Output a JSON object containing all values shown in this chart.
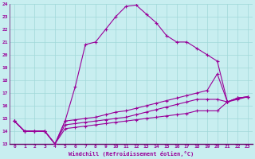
{
  "xlabel": "Windchill (Refroidissement éolien,°C)",
  "xlim": [
    -0.5,
    23.5
  ],
  "ylim": [
    13,
    24
  ],
  "xticks": [
    0,
    1,
    2,
    3,
    4,
    5,
    6,
    7,
    8,
    9,
    10,
    11,
    12,
    13,
    14,
    15,
    16,
    17,
    18,
    19,
    20,
    21,
    22,
    23
  ],
  "yticks": [
    13,
    14,
    15,
    16,
    17,
    18,
    19,
    20,
    21,
    22,
    23,
    24
  ],
  "bg_color": "#c8eef0",
  "line_color": "#990099",
  "grid_color": "#a0d8d8",
  "lines": [
    {
      "x": [
        0,
        1,
        2,
        3,
        4,
        5,
        6,
        7,
        8,
        9,
        10,
        11,
        12,
        13,
        14,
        15,
        16,
        17,
        18,
        19,
        20,
        21,
        22,
        23
      ],
      "y": [
        14.8,
        14.0,
        14.0,
        14.0,
        13.0,
        14.8,
        17.5,
        20.8,
        21.0,
        22.0,
        23.0,
        23.8,
        23.9,
        23.2,
        22.5,
        21.5,
        21.0,
        21.0,
        20.5,
        20.0,
        19.5,
        16.3,
        16.5,
        16.7
      ]
    },
    {
      "x": [
        0,
        1,
        2,
        3,
        4,
        5,
        6,
        7,
        8,
        9,
        10,
        11,
        12,
        13,
        14,
        15,
        16,
        17,
        18,
        19,
        20,
        21,
        22,
        23
      ],
      "y": [
        14.8,
        14.0,
        14.0,
        14.0,
        13.0,
        14.8,
        14.9,
        15.0,
        15.1,
        15.3,
        15.5,
        15.6,
        15.8,
        16.0,
        16.2,
        16.4,
        16.6,
        16.8,
        17.0,
        17.2,
        18.5,
        16.3,
        16.6,
        16.7
      ]
    },
    {
      "x": [
        0,
        1,
        2,
        3,
        4,
        5,
        6,
        7,
        8,
        9,
        10,
        11,
        12,
        13,
        14,
        15,
        16,
        17,
        18,
        19,
        20,
        21,
        22,
        23
      ],
      "y": [
        14.8,
        14.0,
        14.0,
        14.0,
        13.0,
        14.5,
        14.6,
        14.7,
        14.8,
        14.9,
        15.0,
        15.1,
        15.3,
        15.5,
        15.7,
        15.9,
        16.1,
        16.3,
        16.5,
        16.5,
        16.5,
        16.3,
        16.6,
        16.7
      ]
    },
    {
      "x": [
        0,
        1,
        2,
        3,
        4,
        5,
        6,
        7,
        8,
        9,
        10,
        11,
        12,
        13,
        14,
        15,
        16,
        17,
        18,
        19,
        20,
        21,
        22,
        23
      ],
      "y": [
        14.8,
        14.0,
        14.0,
        14.0,
        13.0,
        14.2,
        14.3,
        14.4,
        14.5,
        14.6,
        14.7,
        14.8,
        14.9,
        15.0,
        15.1,
        15.2,
        15.3,
        15.4,
        15.6,
        15.6,
        15.6,
        16.3,
        16.6,
        16.7
      ]
    }
  ]
}
